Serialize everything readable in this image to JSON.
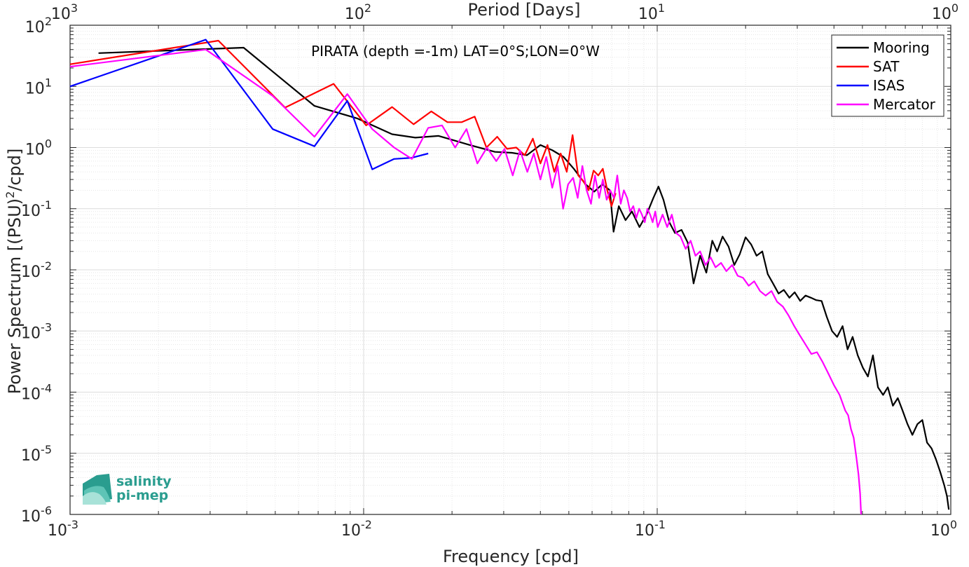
{
  "chart_data": {
    "type": "line",
    "title": "PIRATA (depth =-1m) LAT=0°S;LON=0°W",
    "xlabel": "Frequency [cpd]",
    "ylabel": "Power Spectrum [(PSU)²/cpd]",
    "top_xlabel": "Period [Days]",
    "xscale": "log",
    "yscale": "log",
    "xlim": [
      0.001,
      1
    ],
    "ylim": [
      1e-06,
      100
    ],
    "grid": true,
    "legend_position": "top-right",
    "x_ticks": [
      {
        "value": 0.001,
        "base": "10",
        "exp": "-3"
      },
      {
        "value": 0.01,
        "base": "10",
        "exp": "-2"
      },
      {
        "value": 0.1,
        "base": "10",
        "exp": "-1"
      },
      {
        "value": 1,
        "base": "10",
        "exp": "0"
      }
    ],
    "top_ticks": [
      {
        "value": 0.001,
        "base": "10",
        "exp": "3"
      },
      {
        "value": 0.01,
        "base": "10",
        "exp": "2"
      },
      {
        "value": 0.1,
        "base": "10",
        "exp": "1"
      },
      {
        "value": 1,
        "base": "10",
        "exp": "0"
      }
    ],
    "y_ticks": [
      {
        "value": 100,
        "base": "10",
        "exp": "2"
      },
      {
        "value": 10,
        "base": "10",
        "exp": "1"
      },
      {
        "value": 1,
        "base": "10",
        "exp": "0"
      },
      {
        "value": 0.1,
        "base": "10",
        "exp": "-1"
      },
      {
        "value": 0.01,
        "base": "10",
        "exp": "-2"
      },
      {
        "value": 0.001,
        "base": "10",
        "exp": "-3"
      },
      {
        "value": 0.0001,
        "base": "10",
        "exp": "-4"
      },
      {
        "value": 1e-05,
        "base": "10",
        "exp": "-5"
      },
      {
        "value": 1e-06,
        "base": "10",
        "exp": "-6"
      }
    ],
    "series": [
      {
        "name": "Mooring",
        "color": "#000000",
        "points": [
          [
            0.00125,
            35
          ],
          [
            0.0039,
            43
          ],
          [
            0.0068,
            4.8
          ],
          [
            0.0095,
            3.0
          ],
          [
            0.0125,
            1.65
          ],
          [
            0.015,
            1.45
          ],
          [
            0.018,
            1.55
          ],
          [
            0.023,
            1.1
          ],
          [
            0.028,
            0.85
          ],
          [
            0.032,
            0.82
          ],
          [
            0.036,
            0.75
          ],
          [
            0.04,
            1.1
          ],
          [
            0.044,
            0.9
          ],
          [
            0.048,
            0.7
          ],
          [
            0.052,
            0.45
          ],
          [
            0.057,
            0.25
          ],
          [
            0.061,
            0.19
          ],
          [
            0.065,
            0.25
          ],
          [
            0.069,
            0.2
          ],
          [
            0.071,
            0.042
          ],
          [
            0.074,
            0.11
          ],
          [
            0.078,
            0.065
          ],
          [
            0.082,
            0.09
          ],
          [
            0.087,
            0.05
          ],
          [
            0.092,
            0.08
          ],
          [
            0.097,
            0.15
          ],
          [
            0.101,
            0.23
          ],
          [
            0.105,
            0.14
          ],
          [
            0.11,
            0.06
          ],
          [
            0.115,
            0.04
          ],
          [
            0.121,
            0.045
          ],
          [
            0.127,
            0.028
          ],
          [
            0.133,
            0.006
          ],
          [
            0.14,
            0.017
          ],
          [
            0.147,
            0.009
          ],
          [
            0.154,
            0.03
          ],
          [
            0.16,
            0.02
          ],
          [
            0.167,
            0.035
          ],
          [
            0.175,
            0.024
          ],
          [
            0.183,
            0.012
          ],
          [
            0.191,
            0.018
          ],
          [
            0.2,
            0.034
          ],
          [
            0.209,
            0.026
          ],
          [
            0.218,
            0.017
          ],
          [
            0.228,
            0.02
          ],
          [
            0.238,
            0.0085
          ],
          [
            0.248,
            0.006
          ],
          [
            0.259,
            0.0041
          ],
          [
            0.27,
            0.0047
          ],
          [
            0.282,
            0.0035
          ],
          [
            0.294,
            0.0043
          ],
          [
            0.307,
            0.0031
          ],
          [
            0.32,
            0.0038
          ],
          [
            0.334,
            0.0035
          ],
          [
            0.348,
            0.0032
          ],
          [
            0.363,
            0.0031
          ],
          [
            0.378,
            0.0017
          ],
          [
            0.394,
            0.001
          ],
          [
            0.41,
            0.0008
          ],
          [
            0.428,
            0.0012
          ],
          [
            0.445,
            0.0005
          ],
          [
            0.463,
            0.0008
          ],
          [
            0.482,
            0.0004
          ],
          [
            0.502,
            0.00025
          ],
          [
            0.522,
            0.00018
          ],
          [
            0.543,
            0.0004
          ],
          [
            0.565,
            0.00012
          ],
          [
            0.588,
            9e-05
          ],
          [
            0.61,
            0.00012
          ],
          [
            0.635,
            6e-05
          ],
          [
            0.66,
            8e-05
          ],
          [
            0.685,
            5e-05
          ],
          [
            0.712,
            3e-05
          ],
          [
            0.74,
            2e-05
          ],
          [
            0.77,
            3e-05
          ],
          [
            0.8,
            3.5e-05
          ],
          [
            0.83,
            1.5e-05
          ],
          [
            0.86,
            1.2e-05
          ],
          [
            0.89,
            8e-06
          ],
          [
            0.92,
            5e-06
          ],
          [
            0.95,
            3e-06
          ],
          [
            0.97,
            2e-06
          ],
          [
            0.985,
            1.2e-06
          ]
        ]
      },
      {
        "name": "SAT",
        "color": "#ff0000",
        "points": [
          [
            0.001,
            23
          ],
          [
            0.0032,
            56
          ],
          [
            0.0054,
            4.5
          ],
          [
            0.0079,
            11
          ],
          [
            0.0102,
            2.3
          ],
          [
            0.0125,
            4.6
          ],
          [
            0.0148,
            2.4
          ],
          [
            0.017,
            3.9
          ],
          [
            0.0193,
            2.6
          ],
          [
            0.0216,
            2.6
          ],
          [
            0.0239,
            3.2
          ],
          [
            0.0262,
            1.0
          ],
          [
            0.0285,
            1.5
          ],
          [
            0.0308,
            0.95
          ],
          [
            0.0331,
            1.0
          ],
          [
            0.0354,
            0.75
          ],
          [
            0.0377,
            1.4
          ],
          [
            0.04,
            0.55
          ],
          [
            0.0423,
            1.1
          ],
          [
            0.0446,
            0.4
          ],
          [
            0.0469,
            0.8
          ],
          [
            0.0492,
            0.4
          ],
          [
            0.0515,
            1.6
          ],
          [
            0.0538,
            0.35
          ],
          [
            0.0561,
            0.28
          ],
          [
            0.0584,
            0.2
          ],
          [
            0.0607,
            0.42
          ],
          [
            0.063,
            0.35
          ],
          [
            0.0653,
            0.45
          ],
          [
            0.0676,
            0.2
          ],
          [
            0.0699,
            0.11
          ],
          [
            0.0722,
            0.18
          ]
        ]
      },
      {
        "name": "ISAS",
        "color": "#0000ff",
        "points": [
          [
            0.001,
            10
          ],
          [
            0.0029,
            58
          ],
          [
            0.0049,
            2.0
          ],
          [
            0.0068,
            1.05
          ],
          [
            0.0088,
            5.8
          ],
          [
            0.0107,
            0.44
          ],
          [
            0.0127,
            0.65
          ],
          [
            0.0146,
            0.68
          ],
          [
            0.0166,
            0.8
          ]
        ]
      },
      {
        "name": "Mercator",
        "color": "#ff00ff",
        "points": [
          [
            0.001,
            21
          ],
          [
            0.0029,
            40
          ],
          [
            0.0049,
            7
          ],
          [
            0.0068,
            1.5
          ],
          [
            0.0088,
            7.5
          ],
          [
            0.0107,
            2.0
          ],
          [
            0.0127,
            1.0
          ],
          [
            0.0146,
            0.65
          ],
          [
            0.0166,
            2.1
          ],
          [
            0.0185,
            2.3
          ],
          [
            0.0205,
            1.0
          ],
          [
            0.0224,
            2.0
          ],
          [
            0.0244,
            0.55
          ],
          [
            0.0263,
            1.0
          ],
          [
            0.0283,
            0.6
          ],
          [
            0.0302,
            0.95
          ],
          [
            0.0322,
            0.35
          ],
          [
            0.0341,
            0.9
          ],
          [
            0.0361,
            0.4
          ],
          [
            0.038,
            0.8
          ],
          [
            0.04,
            0.3
          ],
          [
            0.0419,
            0.7
          ],
          [
            0.0439,
            0.22
          ],
          [
            0.0458,
            0.5
          ],
          [
            0.0478,
            0.1
          ],
          [
            0.0497,
            0.25
          ],
          [
            0.0517,
            0.32
          ],
          [
            0.0536,
            0.15
          ],
          [
            0.0556,
            0.5
          ],
          [
            0.0575,
            0.2
          ],
          [
            0.0595,
            0.12
          ],
          [
            0.0614,
            0.35
          ],
          [
            0.0634,
            0.15
          ],
          [
            0.0653,
            0.3
          ],
          [
            0.0673,
            0.14
          ],
          [
            0.0692,
            0.2
          ],
          [
            0.0712,
            0.15
          ],
          [
            0.0731,
            0.35
          ],
          [
            0.0751,
            0.12
          ],
          [
            0.077,
            0.2
          ],
          [
            0.079,
            0.15
          ],
          [
            0.0809,
            0.09
          ],
          [
            0.0829,
            0.11
          ],
          [
            0.0848,
            0.07
          ],
          [
            0.0868,
            0.1
          ],
          [
            0.0887,
            0.08
          ],
          [
            0.0907,
            0.06
          ],
          [
            0.0926,
            0.1
          ],
          [
            0.0946,
            0.08
          ],
          [
            0.0965,
            0.06
          ],
          [
            0.0985,
            0.09
          ],
          [
            0.1004,
            0.05
          ],
          [
            0.1043,
            0.08
          ],
          [
            0.1082,
            0.05
          ],
          [
            0.1121,
            0.08
          ],
          [
            0.116,
            0.04
          ],
          [
            0.12,
            0.035
          ],
          [
            0.125,
            0.022
          ],
          [
            0.13,
            0.03
          ],
          [
            0.135,
            0.017
          ],
          [
            0.14,
            0.02
          ],
          [
            0.146,
            0.012
          ],
          [
            0.152,
            0.016
          ],
          [
            0.158,
            0.011
          ],
          [
            0.165,
            0.013
          ],
          [
            0.172,
            0.0095
          ],
          [
            0.18,
            0.012
          ],
          [
            0.188,
            0.008
          ],
          [
            0.196,
            0.0074
          ],
          [
            0.205,
            0.0055
          ],
          [
            0.214,
            0.0065
          ],
          [
            0.224,
            0.0045
          ],
          [
            0.234,
            0.0038
          ],
          [
            0.245,
            0.0045
          ],
          [
            0.256,
            0.003
          ],
          [
            0.268,
            0.0025
          ],
          [
            0.28,
            0.0018
          ],
          [
            0.293,
            0.0012
          ],
          [
            0.306,
            0.00085
          ],
          [
            0.32,
            0.0006
          ],
          [
            0.335,
            0.00042
          ],
          [
            0.35,
            0.00045
          ],
          [
            0.366,
            0.00031
          ],
          [
            0.383,
            0.0002
          ],
          [
            0.4,
            0.00013
          ],
          [
            0.418,
            9e-05
          ],
          [
            0.437,
            5e-05
          ],
          [
            0.447,
            4.2e-05
          ],
          [
            0.457,
            2.5e-05
          ],
          [
            0.467,
            1.8e-05
          ],
          [
            0.477,
            8.5e-06
          ],
          [
            0.485,
            4.5e-06
          ],
          [
            0.491,
            2.2e-06
          ],
          [
            0.495,
            1e-06
          ]
        ]
      }
    ]
  },
  "logo": {
    "line1": "salinity",
    "line2": "pi-mep"
  }
}
